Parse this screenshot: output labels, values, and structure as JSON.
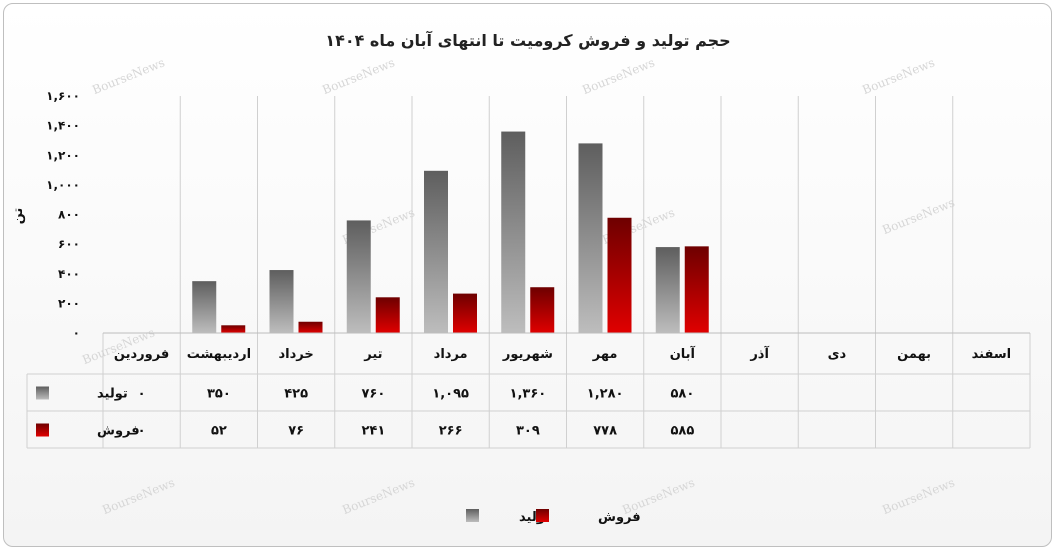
{
  "colors": {
    "production_top": "#5e5e5e",
    "production_bottom": "#bdbdbd",
    "sales_top": "#6e0000",
    "sales_bottom": "#e00000"
  },
  "watermark": "BourseNews",
  "chart_data": {
    "type": "bar",
    "title": "حجم تولید و فروش کرومیت تا انتهای آبان ماه ۱۴۰۴",
    "ylabel": "تن",
    "xlabel": "",
    "ylim": [
      0,
      1600
    ],
    "yticks": [
      0,
      200,
      400,
      600,
      800,
      1000,
      1200,
      1400,
      1600
    ],
    "ytick_labels": [
      "۰",
      "۲۰۰",
      "۴۰۰",
      "۶۰۰",
      "۸۰۰",
      "۱,۰۰۰",
      "۱,۲۰۰",
      "۱,۴۰۰",
      "۱,۶۰۰"
    ],
    "grid": "vertical category separators",
    "legend_position": "bottom-center",
    "categories": [
      "فروردین",
      "اردیبهشت",
      "خرداد",
      "تیر",
      "مرداد",
      "شهریور",
      "مهر",
      "آبان",
      "آذر",
      "دی",
      "بهمن",
      "اسفند"
    ],
    "series": [
      {
        "name": "تولید",
        "values": [
          0,
          350,
          425,
          760,
          1095,
          1360,
          1280,
          580,
          null,
          null,
          null,
          null
        ],
        "labels": [
          "۰",
          "۳۵۰",
          "۴۲۵",
          "۷۶۰",
          "۱,۰۹۵",
          "۱,۳۶۰",
          "۱,۲۸۰",
          "۵۸۰",
          "",
          "",
          "",
          ""
        ]
      },
      {
        "name": "فروش",
        "values": [
          0,
          52,
          76,
          241,
          266,
          309,
          778,
          585,
          null,
          null,
          null,
          null
        ],
        "labels": [
          "۰",
          "۵۲",
          "۷۶",
          "۲۴۱",
          "۲۶۶",
          "۳۰۹",
          "۷۷۸",
          "۵۸۵",
          "",
          "",
          "",
          ""
        ]
      }
    ]
  }
}
